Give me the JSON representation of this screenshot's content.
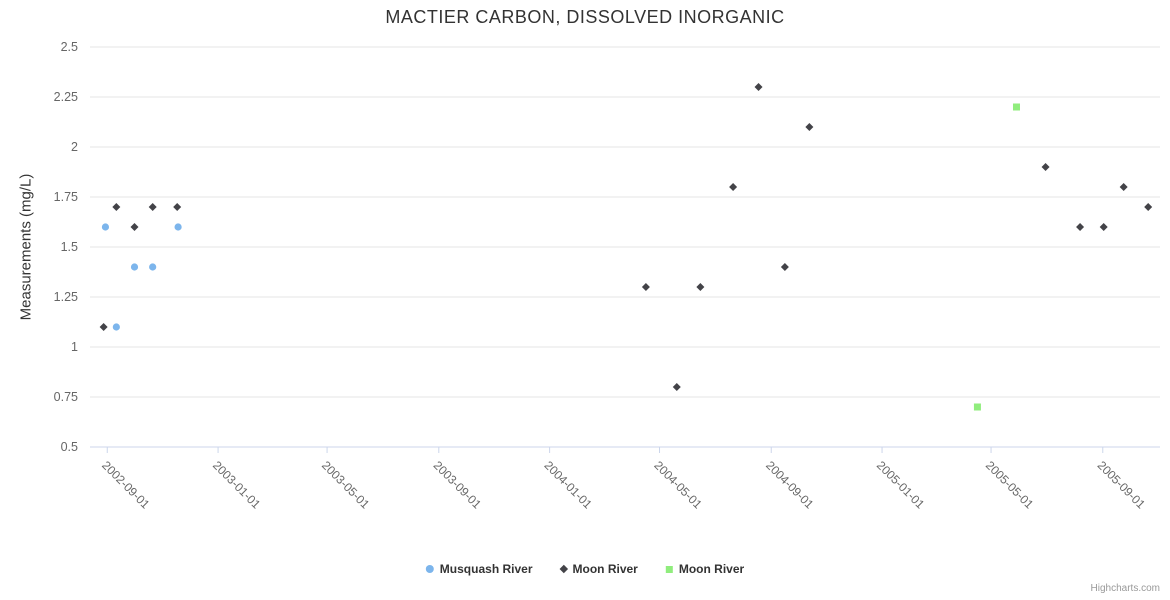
{
  "chart_data": {
    "type": "scatter",
    "title": "MACTIER CARBON, DISSOLVED INORGANIC",
    "xlabel": "",
    "ylabel": "Measurements (mg/L)",
    "ylim": [
      0.5,
      2.5
    ],
    "y_ticks": [
      0.5,
      0.75,
      1,
      1.25,
      1.5,
      1.75,
      2,
      2.25,
      2.5
    ],
    "y_tick_labels": [
      "0.5",
      "0.75",
      "1",
      "1.25",
      "1.5",
      "1.75",
      "2",
      "2.25",
      "2.5"
    ],
    "x_ticks": [
      "2002-09-01",
      "2003-01-01",
      "2003-05-01",
      "2003-09-01",
      "2004-01-01",
      "2004-05-01",
      "2004-09-01",
      "2005-01-01",
      "2005-05-01",
      "2005-09-01"
    ],
    "x_range": [
      "2002-08-13",
      "2005-11-03"
    ],
    "grid": "horizontal-only",
    "legend_position": "bottom-center",
    "colors": {
      "gridline": "#e6e6e6",
      "axis_line": "#ccd6eb",
      "tick_label": "#666666",
      "title_text": "#333333"
    },
    "series": [
      {
        "name": "Musquash River",
        "marker": "circle",
        "color": "#7cb5ec",
        "points": [
          [
            "2002-08-30",
            1.6
          ],
          [
            "2002-09-11",
            1.1
          ],
          [
            "2002-10-01",
            1.4
          ],
          [
            "2002-10-21",
            1.4
          ],
          [
            "2002-11-18",
            1.6
          ]
        ]
      },
      {
        "name": "Moon River",
        "marker": "diamond",
        "color": "#434348",
        "points": [
          [
            "2002-08-28",
            1.1
          ],
          [
            "2002-09-11",
            1.7
          ],
          [
            "2002-10-01",
            1.6
          ],
          [
            "2002-10-21",
            1.7
          ],
          [
            "2002-11-17",
            1.7
          ],
          [
            "2004-04-16",
            1.3
          ],
          [
            "2004-05-20",
            0.8
          ],
          [
            "2004-06-15",
            1.3
          ],
          [
            "2004-07-21",
            1.8
          ],
          [
            "2004-08-18",
            2.3
          ],
          [
            "2004-09-16",
            1.4
          ],
          [
            "2004-10-13",
            2.1
          ],
          [
            "2005-06-30",
            1.9
          ],
          [
            "2005-08-07",
            1.6
          ],
          [
            "2005-09-02",
            1.6
          ],
          [
            "2005-09-24",
            1.8
          ],
          [
            "2005-10-21",
            1.7
          ]
        ]
      },
      {
        "name": "Moon River",
        "marker": "square",
        "color": "#90ed7d",
        "points": [
          [
            "2005-04-16",
            0.7
          ],
          [
            "2005-05-29",
            2.2
          ]
        ]
      }
    ],
    "credits": "Highcharts.com"
  }
}
